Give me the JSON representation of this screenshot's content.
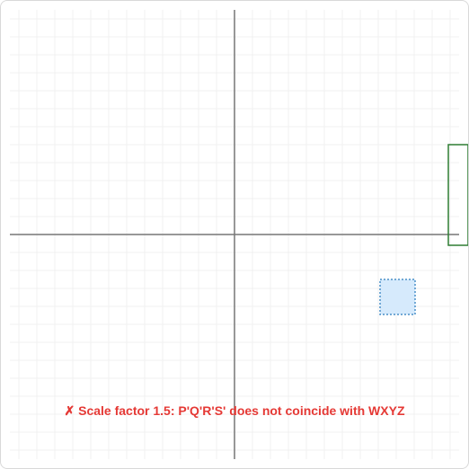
{
  "status": {
    "message": "✗ Scale factor 1.5: P'Q'R'S' does not coincide with WXYZ"
  },
  "colors": {
    "grid": "#f0f0f0",
    "axis": "#777777",
    "target_outline": "#2e7d32",
    "image_fill": "#d6eafc",
    "image_stroke": "#4a90c8",
    "status_text": "#e53935"
  },
  "plane": {
    "x_range": [
      -12.5,
      12.5
    ],
    "y_range": [
      -12.5,
      12.5
    ],
    "grid_step": 1
  },
  "target_square": {
    "label": "WXYZ",
    "corners": [
      [
        11.9,
        5
      ],
      [
        13,
        5
      ],
      [
        13,
        -0.6
      ],
      [
        11.9,
        -0.6
      ]
    ]
  },
  "image_square": {
    "label": "P'Q'R'S'",
    "scale_factor": 1.5,
    "corners": [
      [
        8.1,
        -2.5
      ],
      [
        10.05,
        -2.5
      ],
      [
        10.05,
        -4.45
      ],
      [
        8.1,
        -4.45
      ]
    ]
  }
}
